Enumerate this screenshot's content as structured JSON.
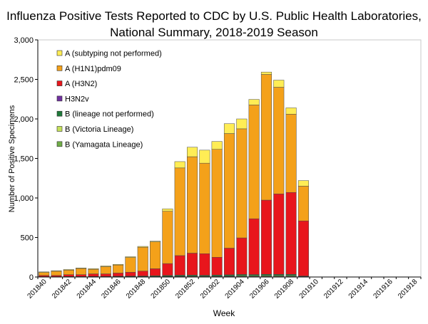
{
  "chart_data": {
    "type": "bar",
    "stacked": true,
    "title": "Influenza Positive Tests Reported to CDC by U.S. Public Health Laboratories, National Summary, 2018-2019 Season",
    "title_lines": [
      "Influenza Positive Tests Reported to CDC by U.S. Public Health Laboratories,",
      "National Summary, 2018-2019 Season"
    ],
    "xlabel": "Week",
    "ylabel": "Number of Positive Specimens",
    "ylim": [
      0,
      3000
    ],
    "yticks": [
      0,
      500,
      1000,
      1500,
      2000,
      2500,
      3000
    ],
    "ytick_labels": [
      "0",
      "500",
      "1,000",
      "1,500",
      "2,000",
      "2,500",
      "3,000"
    ],
    "legend_position": "top-left",
    "categories": [
      "201840",
      "201841",
      "201842",
      "201843",
      "201844",
      "201845",
      "201846",
      "201847",
      "201848",
      "201849",
      "201850",
      "201851",
      "201852",
      "201901",
      "201902",
      "201903",
      "201904",
      "201905",
      "201906",
      "201907",
      "201908",
      "201909",
      "201910",
      "201911",
      "201912",
      "201913",
      "201914",
      "201915",
      "201916",
      "201917",
      "201918"
    ],
    "xtick_labels": [
      "201840",
      "201842",
      "201844",
      "201846",
      "201848",
      "201850",
      "201852",
      "201902",
      "201904",
      "201906",
      "201908",
      "201910",
      "201912",
      "201914",
      "201916",
      "201918"
    ],
    "series": [
      {
        "name": "B (Yamagata Lineage)",
        "color": "#70ad47",
        "values": [
          1,
          1,
          1,
          1,
          2,
          2,
          2,
          3,
          3,
          3,
          4,
          5,
          5,
          5,
          6,
          7,
          8,
          8,
          9,
          9,
          9,
          4,
          0,
          0,
          0,
          0,
          0,
          0,
          0,
          0,
          0
        ]
      },
      {
        "name": "B (Victoria Lineage)",
        "color": "#c5e15a",
        "values": [
          1,
          1,
          1,
          1,
          1,
          1,
          2,
          2,
          2,
          3,
          4,
          4,
          5,
          5,
          6,
          6,
          7,
          7,
          8,
          8,
          8,
          3,
          0,
          0,
          0,
          0,
          0,
          0,
          0,
          0,
          0
        ]
      },
      {
        "name": "B (lineage not performed)",
        "color": "#1f7a3a",
        "values": [
          3,
          3,
          4,
          4,
          5,
          5,
          6,
          7,
          8,
          10,
          12,
          14,
          14,
          12,
          13,
          15,
          17,
          16,
          17,
          16,
          16,
          6,
          0,
          0,
          0,
          0,
          0,
          0,
          0,
          0,
          0
        ]
      },
      {
        "name": "H3N2v",
        "color": "#7030a0",
        "values": [
          0,
          0,
          0,
          0,
          0,
          0,
          0,
          0,
          0,
          0,
          0,
          0,
          0,
          0,
          0,
          0,
          0,
          0,
          0,
          0,
          0,
          0,
          0,
          0,
          0,
          0,
          0,
          0,
          0,
          0,
          0
        ]
      },
      {
        "name": "A (H3N2)",
        "color": "#e8161c",
        "values": [
          15,
          15,
          24,
          24,
          32,
          32,
          40,
          48,
          62,
          89,
          150,
          248,
          278,
          273,
          225,
          337,
          463,
          706,
          939,
          1018,
          1037,
          697,
          0,
          0,
          0,
          0,
          0,
          0,
          0,
          0,
          0
        ]
      },
      {
        "name": "A (H1N1)pdm09",
        "color": "#f4a11a",
        "values": [
          38,
          53,
          57,
          78,
          58,
          91,
          102,
          187,
          302,
          340,
          662,
          1109,
          1220,
          1145,
          1365,
          1450,
          1380,
          1440,
          1590,
          1350,
          990,
          440,
          0,
          0,
          0,
          0,
          0,
          0,
          0,
          0,
          0
        ]
      },
      {
        "name": "A (subtyping not performed)",
        "color": "#ffed55",
        "values": [
          7,
          7,
          8,
          7,
          8,
          9,
          8,
          10,
          10,
          9,
          30,
          80,
          120,
          165,
          100,
          125,
          125,
          70,
          30,
          90,
          80,
          70,
          0,
          0,
          0,
          0,
          0,
          0,
          0,
          0,
          0
        ]
      }
    ],
    "legend_order": [
      "A (subtyping not performed)",
      "A (H1N1)pdm09",
      "A (H3N2)",
      "H3N2v",
      "B (lineage not performed)",
      "B (Victoria Lineage)",
      "B (Yamagata Lineage)"
    ]
  }
}
